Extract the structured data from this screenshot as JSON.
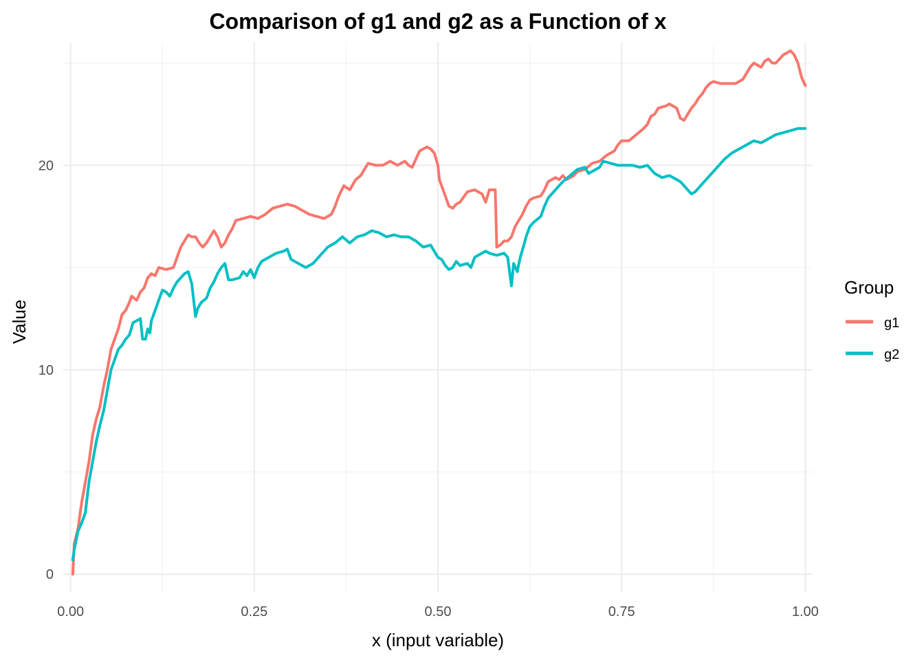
{
  "chart_data": {
    "type": "line",
    "title": "Comparison of g1 and g2 as a Function of x",
    "xlabel": "x (input variable)",
    "ylabel": "Value",
    "xlim": [
      -0.01,
      1.01
    ],
    "ylim": [
      -0.9,
      26.0
    ],
    "x_ticks": [
      {
        "value": 0.0,
        "label": "0.00"
      },
      {
        "value": 0.25,
        "label": "0.25"
      },
      {
        "value": 0.5,
        "label": "0.50"
      },
      {
        "value": 0.75,
        "label": "0.75"
      },
      {
        "value": 1.0,
        "label": "1.00"
      }
    ],
    "y_ticks": [
      {
        "value": 0,
        "label": "0"
      },
      {
        "value": 10,
        "label": "10"
      },
      {
        "value": 20,
        "label": "20"
      }
    ],
    "grid": true,
    "legend": {
      "title": "Group",
      "position": "right"
    },
    "series": [
      {
        "name": "g1",
        "color": "#F8766D",
        "points": [
          [
            0.003,
            0.0
          ],
          [
            0.005,
            1.5
          ],
          [
            0.01,
            2.2
          ],
          [
            0.015,
            3.5
          ],
          [
            0.02,
            4.5
          ],
          [
            0.025,
            5.5
          ],
          [
            0.03,
            6.8
          ],
          [
            0.035,
            7.6
          ],
          [
            0.04,
            8.2
          ],
          [
            0.045,
            9.2
          ],
          [
            0.05,
            10.0
          ],
          [
            0.055,
            11.0
          ],
          [
            0.06,
            11.5
          ],
          [
            0.065,
            12.0
          ],
          [
            0.07,
            12.7
          ],
          [
            0.075,
            12.9
          ],
          [
            0.08,
            13.3
          ],
          [
            0.083,
            13.6
          ],
          [
            0.09,
            13.4
          ],
          [
            0.095,
            13.8
          ],
          [
            0.1,
            14.0
          ],
          [
            0.105,
            14.5
          ],
          [
            0.11,
            14.7
          ],
          [
            0.115,
            14.6
          ],
          [
            0.12,
            15.0
          ],
          [
            0.13,
            14.9
          ],
          [
            0.14,
            15.0
          ],
          [
            0.145,
            15.5
          ],
          [
            0.15,
            16.0
          ],
          [
            0.155,
            16.3
          ],
          [
            0.16,
            16.6
          ],
          [
            0.165,
            16.5
          ],
          [
            0.17,
            16.5
          ],
          [
            0.175,
            16.2
          ],
          [
            0.18,
            16.0
          ],
          [
            0.185,
            16.2
          ],
          [
            0.19,
            16.5
          ],
          [
            0.195,
            16.8
          ],
          [
            0.2,
            16.5
          ],
          [
            0.205,
            16.0
          ],
          [
            0.21,
            16.2
          ],
          [
            0.215,
            16.6
          ],
          [
            0.22,
            16.9
          ],
          [
            0.225,
            17.3
          ],
          [
            0.235,
            17.4
          ],
          [
            0.245,
            17.5
          ],
          [
            0.255,
            17.4
          ],
          [
            0.265,
            17.6
          ],
          [
            0.275,
            17.9
          ],
          [
            0.285,
            18.0
          ],
          [
            0.295,
            18.1
          ],
          [
            0.305,
            18.0
          ],
          [
            0.315,
            17.8
          ],
          [
            0.325,
            17.6
          ],
          [
            0.335,
            17.5
          ],
          [
            0.345,
            17.4
          ],
          [
            0.355,
            17.6
          ],
          [
            0.36,
            18.0
          ],
          [
            0.365,
            18.5
          ],
          [
            0.372,
            19.0
          ],
          [
            0.38,
            18.8
          ],
          [
            0.388,
            19.3
          ],
          [
            0.395,
            19.5
          ],
          [
            0.4,
            19.8
          ],
          [
            0.405,
            20.1
          ],
          [
            0.415,
            20.0
          ],
          [
            0.425,
            20.0
          ],
          [
            0.435,
            20.2
          ],
          [
            0.445,
            20.0
          ],
          [
            0.455,
            20.2
          ],
          [
            0.46,
            20.0
          ],
          [
            0.465,
            19.9
          ],
          [
            0.47,
            20.3
          ],
          [
            0.475,
            20.7
          ],
          [
            0.48,
            20.8
          ],
          [
            0.485,
            20.9
          ],
          [
            0.49,
            20.8
          ],
          [
            0.495,
            20.6
          ],
          [
            0.5,
            20.0
          ],
          [
            0.502,
            19.3
          ],
          [
            0.505,
            19.0
          ],
          [
            0.51,
            18.5
          ],
          [
            0.515,
            18.0
          ],
          [
            0.52,
            17.9
          ],
          [
            0.525,
            18.1
          ],
          [
            0.53,
            18.2
          ],
          [
            0.54,
            18.7
          ],
          [
            0.55,
            18.8
          ],
          [
            0.56,
            18.6
          ],
          [
            0.565,
            18.2
          ],
          [
            0.57,
            18.8
          ],
          [
            0.578,
            18.8
          ],
          [
            0.58,
            16.0
          ],
          [
            0.585,
            16.1
          ],
          [
            0.59,
            16.3
          ],
          [
            0.595,
            16.3
          ],
          [
            0.6,
            16.5
          ],
          [
            0.605,
            17.0
          ],
          [
            0.61,
            17.3
          ],
          [
            0.615,
            17.6
          ],
          [
            0.62,
            18.0
          ],
          [
            0.625,
            18.3
          ],
          [
            0.63,
            18.4
          ],
          [
            0.64,
            18.5
          ],
          [
            0.645,
            18.8
          ],
          [
            0.65,
            19.2
          ],
          [
            0.66,
            19.4
          ],
          [
            0.665,
            19.3
          ],
          [
            0.67,
            19.5
          ],
          [
            0.675,
            19.3
          ],
          [
            0.685,
            19.5
          ],
          [
            0.69,
            19.7
          ],
          [
            0.7,
            19.8
          ],
          [
            0.71,
            20.1
          ],
          [
            0.72,
            20.2
          ],
          [
            0.73,
            20.5
          ],
          [
            0.74,
            20.7
          ],
          [
            0.745,
            21.0
          ],
          [
            0.75,
            21.2
          ],
          [
            0.76,
            21.2
          ],
          [
            0.77,
            21.5
          ],
          [
            0.78,
            21.8
          ],
          [
            0.785,
            22.0
          ],
          [
            0.79,
            22.4
          ],
          [
            0.795,
            22.5
          ],
          [
            0.8,
            22.8
          ],
          [
            0.81,
            22.9
          ],
          [
            0.815,
            23.0
          ],
          [
            0.82,
            22.9
          ],
          [
            0.825,
            22.8
          ],
          [
            0.83,
            22.3
          ],
          [
            0.835,
            22.2
          ],
          [
            0.84,
            22.5
          ],
          [
            0.845,
            22.8
          ],
          [
            0.85,
            23.0
          ],
          [
            0.855,
            23.3
          ],
          [
            0.86,
            23.5
          ],
          [
            0.865,
            23.8
          ],
          [
            0.87,
            24.0
          ],
          [
            0.875,
            24.1
          ],
          [
            0.885,
            24.0
          ],
          [
            0.895,
            24.0
          ],
          [
            0.905,
            24.0
          ],
          [
            0.915,
            24.2
          ],
          [
            0.92,
            24.5
          ],
          [
            0.925,
            24.8
          ],
          [
            0.93,
            25.0
          ],
          [
            0.935,
            24.9
          ],
          [
            0.94,
            24.8
          ],
          [
            0.945,
            25.1
          ],
          [
            0.95,
            25.2
          ],
          [
            0.955,
            25.0
          ],
          [
            0.96,
            25.0
          ],
          [
            0.965,
            25.2
          ],
          [
            0.97,
            25.4
          ],
          [
            0.975,
            25.5
          ],
          [
            0.98,
            25.6
          ],
          [
            0.985,
            25.4
          ],
          [
            0.99,
            25.0
          ],
          [
            0.995,
            24.3
          ],
          [
            1.0,
            23.9
          ]
        ]
      },
      {
        "name": "g2",
        "color": "#00BFC4",
        "points": [
          [
            0.003,
            0.7
          ],
          [
            0.005,
            1.2
          ],
          [
            0.01,
            2.1
          ],
          [
            0.015,
            2.5
          ],
          [
            0.02,
            3.0
          ],
          [
            0.025,
            4.5
          ],
          [
            0.03,
            5.5
          ],
          [
            0.035,
            6.5
          ],
          [
            0.04,
            7.3
          ],
          [
            0.045,
            8.0
          ],
          [
            0.05,
            9.0
          ],
          [
            0.055,
            10.0
          ],
          [
            0.06,
            10.5
          ],
          [
            0.065,
            11.0
          ],
          [
            0.07,
            11.2
          ],
          [
            0.075,
            11.5
          ],
          [
            0.08,
            11.7
          ],
          [
            0.085,
            12.3
          ],
          [
            0.09,
            12.4
          ],
          [
            0.095,
            12.5
          ],
          [
            0.098,
            11.5
          ],
          [
            0.102,
            11.5
          ],
          [
            0.105,
            12.0
          ],
          [
            0.108,
            11.8
          ],
          [
            0.11,
            12.4
          ],
          [
            0.115,
            12.9
          ],
          [
            0.12,
            13.4
          ],
          [
            0.125,
            13.9
          ],
          [
            0.13,
            13.8
          ],
          [
            0.135,
            13.6
          ],
          [
            0.14,
            14.0
          ],
          [
            0.145,
            14.3
          ],
          [
            0.15,
            14.5
          ],
          [
            0.155,
            14.7
          ],
          [
            0.16,
            14.8
          ],
          [
            0.165,
            14.2
          ],
          [
            0.17,
            12.6
          ],
          [
            0.173,
            13.0
          ],
          [
            0.178,
            13.3
          ],
          [
            0.185,
            13.5
          ],
          [
            0.19,
            14.0
          ],
          [
            0.195,
            14.3
          ],
          [
            0.2,
            14.7
          ],
          [
            0.205,
            15.0
          ],
          [
            0.21,
            15.2
          ],
          [
            0.215,
            14.4
          ],
          [
            0.22,
            14.4
          ],
          [
            0.23,
            14.5
          ],
          [
            0.235,
            14.8
          ],
          [
            0.24,
            14.6
          ],
          [
            0.245,
            14.9
          ],
          [
            0.25,
            14.5
          ],
          [
            0.255,
            15.0
          ],
          [
            0.26,
            15.3
          ],
          [
            0.27,
            15.5
          ],
          [
            0.28,
            15.7
          ],
          [
            0.29,
            15.8
          ],
          [
            0.295,
            15.9
          ],
          [
            0.3,
            15.4
          ],
          [
            0.31,
            15.2
          ],
          [
            0.32,
            15.0
          ],
          [
            0.33,
            15.2
          ],
          [
            0.34,
            15.6
          ],
          [
            0.35,
            16.0
          ],
          [
            0.36,
            16.2
          ],
          [
            0.37,
            16.5
          ],
          [
            0.38,
            16.2
          ],
          [
            0.39,
            16.5
          ],
          [
            0.4,
            16.6
          ],
          [
            0.41,
            16.8
          ],
          [
            0.42,
            16.7
          ],
          [
            0.43,
            16.5
          ],
          [
            0.44,
            16.6
          ],
          [
            0.45,
            16.5
          ],
          [
            0.46,
            16.5
          ],
          [
            0.47,
            16.3
          ],
          [
            0.48,
            16.0
          ],
          [
            0.49,
            16.1
          ],
          [
            0.5,
            15.5
          ],
          [
            0.505,
            15.4
          ],
          [
            0.51,
            15.1
          ],
          [
            0.515,
            14.9
          ],
          [
            0.52,
            15.0
          ],
          [
            0.525,
            15.3
          ],
          [
            0.53,
            15.1
          ],
          [
            0.54,
            15.2
          ],
          [
            0.545,
            15.0
          ],
          [
            0.55,
            15.5
          ],
          [
            0.555,
            15.6
          ],
          [
            0.56,
            15.7
          ],
          [
            0.565,
            15.8
          ],
          [
            0.57,
            15.7
          ],
          [
            0.58,
            15.6
          ],
          [
            0.59,
            15.7
          ],
          [
            0.595,
            15.5
          ],
          [
            0.6,
            14.1
          ],
          [
            0.603,
            15.2
          ],
          [
            0.608,
            14.8
          ],
          [
            0.612,
            15.5
          ],
          [
            0.617,
            16.1
          ],
          [
            0.62,
            16.5
          ],
          [
            0.625,
            17.0
          ],
          [
            0.63,
            17.2
          ],
          [
            0.64,
            17.5
          ],
          [
            0.645,
            18.0
          ],
          [
            0.65,
            18.4
          ],
          [
            0.66,
            18.8
          ],
          [
            0.67,
            19.2
          ],
          [
            0.68,
            19.5
          ],
          [
            0.69,
            19.8
          ],
          [
            0.7,
            19.9
          ],
          [
            0.705,
            19.6
          ],
          [
            0.71,
            19.7
          ],
          [
            0.72,
            19.9
          ],
          [
            0.725,
            20.2
          ],
          [
            0.735,
            20.1
          ],
          [
            0.745,
            20.0
          ],
          [
            0.755,
            20.0
          ],
          [
            0.765,
            20.0
          ],
          [
            0.775,
            19.9
          ],
          [
            0.785,
            20.0
          ],
          [
            0.795,
            19.6
          ],
          [
            0.805,
            19.4
          ],
          [
            0.815,
            19.5
          ],
          [
            0.825,
            19.3
          ],
          [
            0.83,
            19.2
          ],
          [
            0.835,
            19.0
          ],
          [
            0.84,
            18.8
          ],
          [
            0.845,
            18.6
          ],
          [
            0.85,
            18.7
          ],
          [
            0.855,
            18.9
          ],
          [
            0.86,
            19.1
          ],
          [
            0.87,
            19.5
          ],
          [
            0.88,
            19.9
          ],
          [
            0.89,
            20.3
          ],
          [
            0.9,
            20.6
          ],
          [
            0.91,
            20.8
          ],
          [
            0.92,
            21.0
          ],
          [
            0.93,
            21.2
          ],
          [
            0.94,
            21.1
          ],
          [
            0.95,
            21.3
          ],
          [
            0.96,
            21.5
          ],
          [
            0.97,
            21.6
          ],
          [
            0.98,
            21.7
          ],
          [
            0.99,
            21.8
          ],
          [
            1.0,
            21.8
          ]
        ]
      }
    ]
  }
}
